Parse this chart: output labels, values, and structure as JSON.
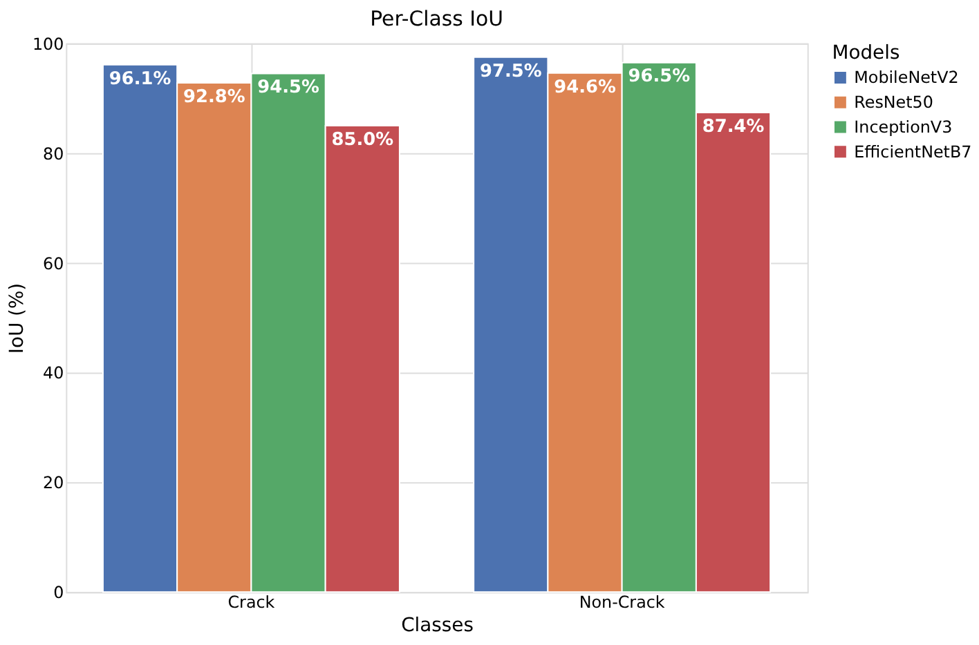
{
  "chart_data": {
    "type": "bar",
    "title": "Per-Class IoU",
    "xlabel": "Classes",
    "ylabel": "IoU (%)",
    "legend_title": "Models",
    "categories": [
      "Crack",
      "Non-Crack"
    ],
    "series": [
      {
        "name": "MobileNetV2",
        "color": "#4c72b0",
        "values": [
          96.1,
          97.5
        ],
        "value_labels": [
          "96.1%",
          "97.5%"
        ]
      },
      {
        "name": "ResNet50",
        "color": "#dd8452",
        "values": [
          92.8,
          94.6
        ],
        "value_labels": [
          "92.8%",
          "94.6%"
        ]
      },
      {
        "name": "InceptionV3",
        "color": "#55a868",
        "values": [
          94.5,
          96.5
        ],
        "value_labels": [
          "94.5%",
          "96.5%"
        ]
      },
      {
        "name": "EfficientNetB7",
        "color": "#c44e52",
        "values": [
          85.0,
          87.4
        ],
        "value_labels": [
          "85.0%",
          "87.4%"
        ]
      }
    ],
    "ylim": [
      0,
      100
    ],
    "yticks": [
      0,
      20,
      40,
      60,
      80,
      100
    ],
    "grid": true,
    "legend": "right"
  }
}
